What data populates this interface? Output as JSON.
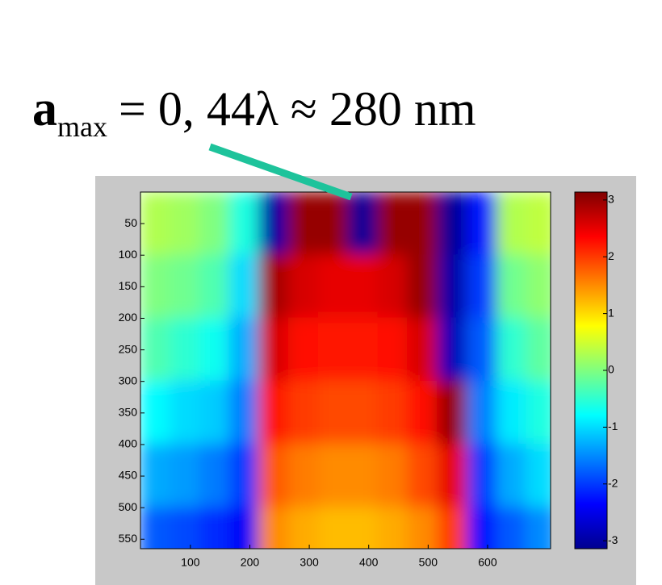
{
  "chart_data": {
    "type": "heatmap",
    "title_parts": [
      "a",
      "max",
      "= 0, 44λ ≈ 280 nm"
    ],
    "x": [
      41,
      91,
      141,
      191,
      241,
      291,
      341,
      391,
      441,
      491,
      541,
      591,
      641,
      691
    ],
    "y": [
      50,
      150,
      250,
      350,
      450,
      550
    ],
    "z": [
      [
        0.3,
        0.2,
        0.0,
        -0.6,
        -2.9,
        3.0,
        3.0,
        -3.0,
        3.0,
        3.0,
        -3.0,
        -2.2,
        0.3,
        0.4
      ],
      [
        0.0,
        -0.1,
        -0.3,
        -1.0,
        2.9,
        2.6,
        2.5,
        2.5,
        2.6,
        3.0,
        -2.9,
        -2.0,
        -0.1,
        0.1
      ],
      [
        -0.3,
        -0.5,
        -0.7,
        -1.3,
        2.6,
        2.3,
        2.2,
        2.2,
        2.3,
        2.6,
        -2.8,
        -1.8,
        -0.5,
        -0.2
      ],
      [
        -0.8,
        -1.0,
        -1.1,
        -1.6,
        2.2,
        2.0,
        1.9,
        1.9,
        2.0,
        2.3,
        3.0,
        -1.6,
        -0.9,
        -0.6
      ],
      [
        -1.3,
        -1.4,
        -1.6,
        -2.0,
        1.8,
        1.6,
        1.5,
        1.5,
        1.6,
        1.9,
        2.5,
        -2.0,
        -1.3,
        -1.0
      ],
      [
        -1.8,
        -1.9,
        -2.1,
        -2.4,
        1.5,
        1.3,
        1.2,
        1.2,
        1.3,
        1.5,
        2.0,
        -2.3,
        -1.8,
        -1.5
      ]
    ],
    "xlim": [
      16,
      706
    ],
    "ylim": [
      565,
      0
    ],
    "xticks": [
      100,
      200,
      300,
      400,
      500,
      600
    ],
    "yticks": [
      50,
      100,
      150,
      200,
      250,
      300,
      350,
      400,
      450,
      500,
      550
    ],
    "clim": [
      -3.14,
      3.14
    ],
    "cticks": [
      3,
      2,
      1,
      0,
      -1,
      -2,
      -3
    ]
  }
}
